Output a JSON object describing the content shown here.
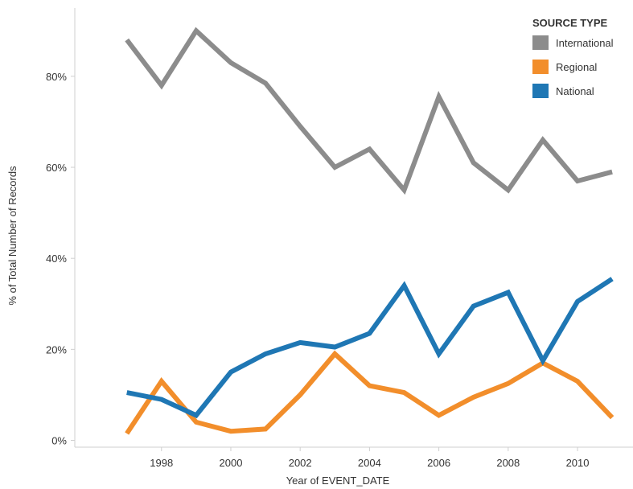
{
  "chart_data": {
    "type": "line",
    "xlabel": "Year of EVENT_DATE",
    "ylabel": "% of Total Number of Records",
    "x": [
      1997,
      1998,
      1999,
      2000,
      2001,
      2002,
      2003,
      2004,
      2005,
      2006,
      2007,
      2008,
      2009,
      2010,
      2011
    ],
    "xlim": [
      1995.5,
      2011.6
    ],
    "xticks": [
      1998,
      2000,
      2002,
      2004,
      2006,
      2008,
      2010
    ],
    "ylim": [
      -1.5,
      95
    ],
    "yticks": [
      0,
      20,
      40,
      60,
      80
    ],
    "ytick_suffix": "%",
    "grid": false,
    "legend_title": "SOURCE TYPE",
    "legend_position": "top-right",
    "series": [
      {
        "name": "International",
        "color": "#8c8c8c",
        "values": [
          88,
          78,
          90,
          83,
          78.5,
          69,
          60,
          64,
          55,
          75.5,
          61,
          55,
          66,
          57,
          59
        ]
      },
      {
        "name": "Regional",
        "color": "#f28e2b",
        "values": [
          1.5,
          13,
          4,
          2,
          2.5,
          10,
          19,
          12,
          10.5,
          5.5,
          9.5,
          12.5,
          17,
          13,
          5
        ]
      },
      {
        "name": "National",
        "color": "#1f77b4",
        "values": [
          10.5,
          9,
          5.5,
          15,
          19,
          21.5,
          20.5,
          23.5,
          34,
          19,
          29.5,
          32.5,
          17.5,
          30.5,
          35.5
        ]
      }
    ]
  }
}
